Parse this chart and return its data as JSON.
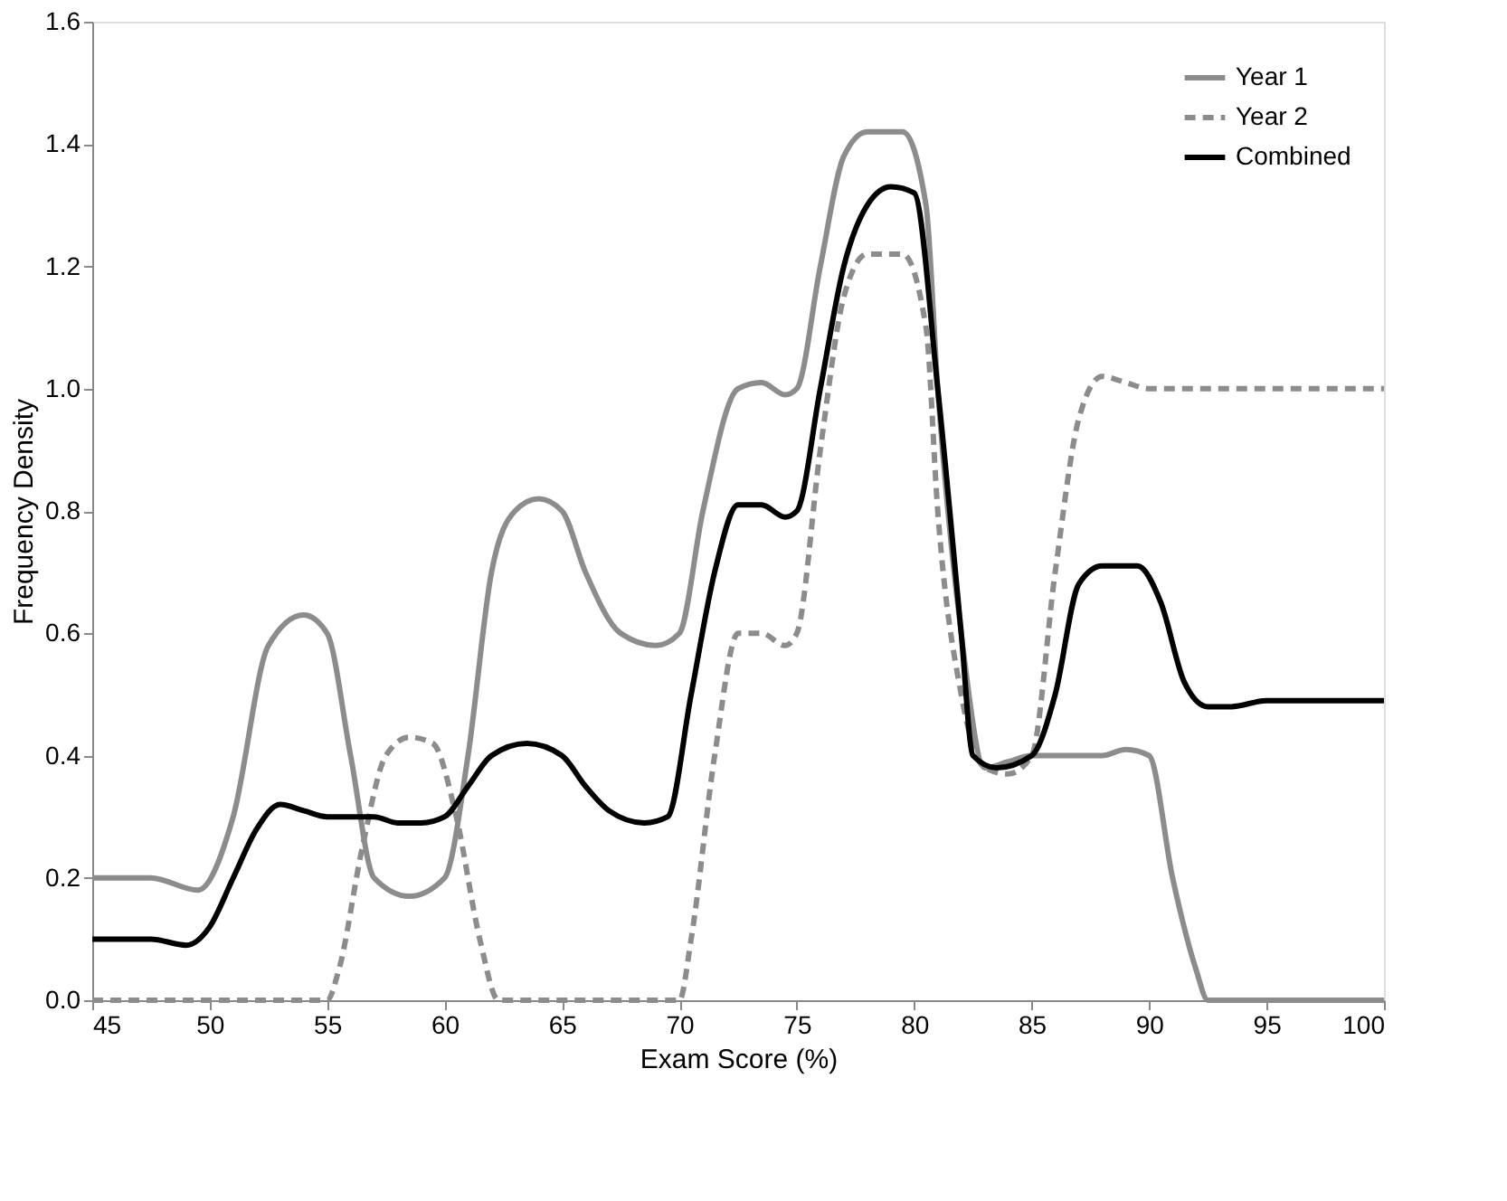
{
  "chart_data": {
    "type": "line",
    "xlabel": "Exam Score (%)",
    "ylabel": "Frequency Density",
    "xlim": [
      45,
      100
    ],
    "xticks": [
      45,
      50,
      55,
      60,
      65,
      70,
      75,
      80,
      85,
      90,
      95,
      100
    ],
    "ylim": [
      0,
      1.6
    ],
    "yticks": [
      {
        "value": 0,
        "label": "0.0"
      },
      {
        "value": 0.2,
        "label": "0.2"
      },
      {
        "value": 0.4,
        "label": "0.4"
      },
      {
        "value": 0.6,
        "label": "0.6"
      },
      {
        "value": 0.8,
        "label": "0.8"
      },
      {
        "value": 1,
        "label": "1.0"
      },
      {
        "value": 1.2,
        "label": "1.2"
      },
      {
        "value": 1.4,
        "label": "1.4"
      },
      {
        "value": 1.6,
        "label": "1.6"
      }
    ],
    "grid": false,
    "legend": "top right",
    "marker": "none",
    "series": [
      {
        "name": "Year 1",
        "color": "#8c8c8c",
        "line_style": "solid",
        "x": [
          45,
          47.5,
          49.5,
          51,
          52.5,
          54,
          55,
          56,
          57,
          58.5,
          60,
          61,
          62,
          63,
          64,
          65,
          66,
          67.5,
          69,
          70,
          71,
          72.5,
          73.5,
          74.5,
          75,
          76,
          77,
          78,
          79.5,
          80.5,
          81,
          82,
          83,
          84,
          85,
          87,
          88,
          89,
          90,
          91,
          92,
          92.5,
          100
        ],
        "values": [
          0.2,
          0.2,
          0.18,
          0.3,
          0.58,
          0.63,
          0.6,
          0.4,
          0.2,
          0.17,
          0.2,
          0.4,
          0.7,
          0.8,
          0.82,
          0.8,
          0.7,
          0.6,
          0.58,
          0.6,
          0.8,
          1.0,
          1.01,
          0.99,
          1.0,
          1.2,
          1.38,
          1.42,
          1.42,
          1.3,
          1.0,
          0.6,
          0.38,
          0.39,
          0.4,
          0.4,
          0.4,
          0.41,
          0.4,
          0.2,
          0.05,
          0.0,
          0.0
        ]
      },
      {
        "name": "Year 2",
        "color": "#8c8c8c",
        "line_style": "dashed",
        "x": [
          45,
          55,
          55.5,
          56.5,
          57.5,
          58.5,
          59.5,
          60.5,
          61.5,
          62.3,
          70,
          70.5,
          71.5,
          72.5,
          73.5,
          74.5,
          75,
          76,
          77,
          78,
          79.5,
          80.5,
          81,
          82,
          83,
          84,
          85,
          86,
          87,
          88,
          89,
          90,
          100
        ],
        "values": [
          0,
          0,
          0.05,
          0.25,
          0.4,
          0.43,
          0.42,
          0.3,
          0.1,
          0,
          0,
          0.1,
          0.4,
          0.6,
          0.6,
          0.58,
          0.6,
          0.9,
          1.15,
          1.22,
          1.22,
          1.1,
          0.8,
          0.5,
          0.38,
          0.37,
          0.4,
          0.7,
          0.95,
          1.02,
          1.01,
          1.0,
          1.0
        ]
      },
      {
        "name": "Combined",
        "color": "#000000",
        "line_style": "solid",
        "x": [
          45,
          47.5,
          49,
          50,
          51,
          52,
          53,
          54,
          55,
          57,
          58,
          59,
          60,
          61,
          62,
          63.5,
          65,
          66,
          67,
          68.5,
          69.5,
          70.5,
          71.5,
          72.5,
          73.5,
          74.5,
          75,
          76,
          77,
          78,
          79,
          80,
          81,
          82,
          82.5,
          83.5,
          85,
          86,
          87,
          88,
          89.5,
          90.5,
          91.5,
          92.5,
          93.5,
          95,
          100
        ],
        "values": [
          0.1,
          0.1,
          0.09,
          0.12,
          0.2,
          0.28,
          0.32,
          0.31,
          0.3,
          0.3,
          0.29,
          0.29,
          0.3,
          0.35,
          0.4,
          0.42,
          0.4,
          0.35,
          0.31,
          0.29,
          0.3,
          0.5,
          0.7,
          0.81,
          0.81,
          0.79,
          0.8,
          1.0,
          1.2,
          1.3,
          1.33,
          1.32,
          1.0,
          0.6,
          0.4,
          0.38,
          0.4,
          0.5,
          0.68,
          0.71,
          0.71,
          0.65,
          0.52,
          0.48,
          0.48,
          0.49,
          0.49
        ]
      }
    ]
  }
}
